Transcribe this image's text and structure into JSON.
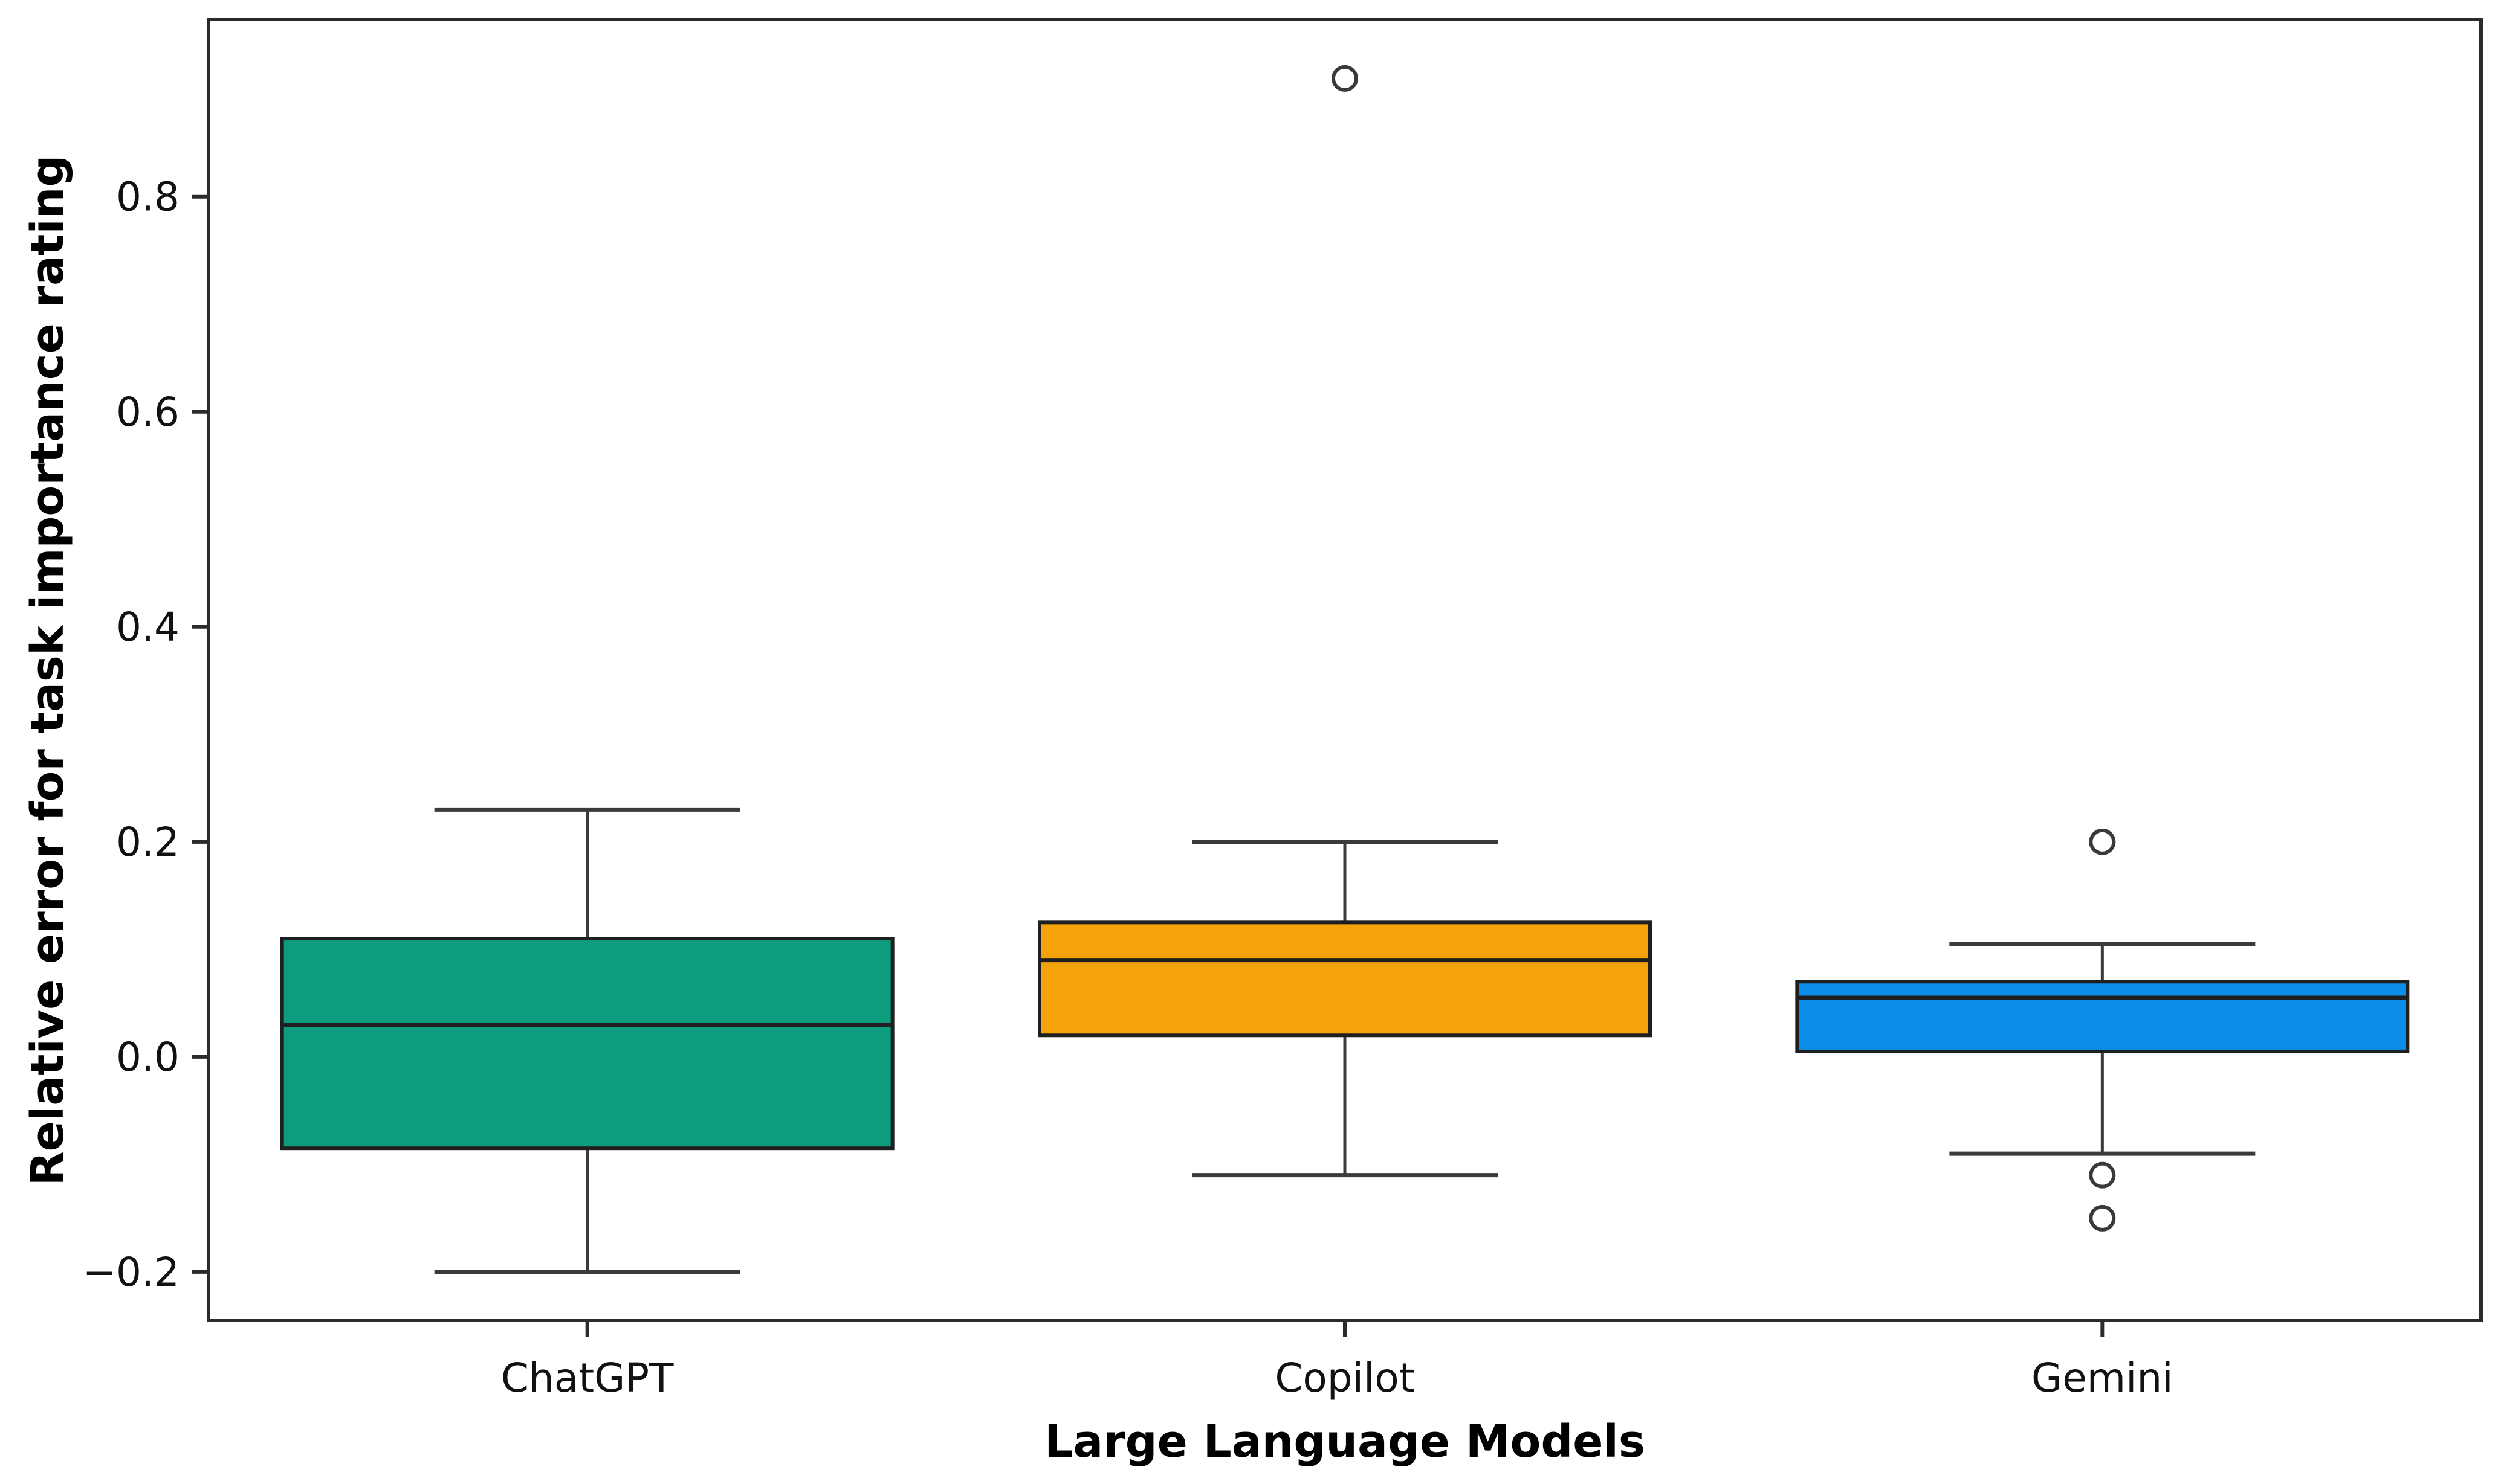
{
  "figure": {
    "background_color": "#ffffff",
    "frame_color": "#2b2b2b",
    "line_color": "#3a3a3a",
    "box_edge_color": "#1f1f1f"
  },
  "chart_data": {
    "type": "boxplot",
    "title": "",
    "xlabel": "Large Language Models",
    "ylabel": "Relative error for task importance rating",
    "categories": [
      "ChatGPT",
      "Copilot",
      "Gemini"
    ],
    "ylim": [
      -0.245,
      0.965
    ],
    "yticks": [
      0.8,
      0.6,
      0.4,
      0.2,
      0.0,
      -0.2
    ],
    "ytick_labels": [
      "0.8",
      "0.6",
      "0.4",
      "0.2",
      "0.0",
      "−0.2"
    ],
    "grid": false,
    "legend": null,
    "series": [
      {
        "name": "ChatGPT",
        "color": "#0e9c7f",
        "whisker_low": -0.2,
        "q1": -0.085,
        "median": 0.03,
        "q3": 0.11,
        "whisker_high": 0.23,
        "outliers": []
      },
      {
        "name": "Copilot",
        "color": "#f5a30a",
        "whisker_low": -0.11,
        "q1": 0.02,
        "median": 0.09,
        "q3": 0.125,
        "whisker_high": 0.2,
        "outliers": [
          0.91
        ]
      },
      {
        "name": "Gemini",
        "color": "#0c8ee8",
        "whisker_low": -0.09,
        "q1": 0.005,
        "median": 0.055,
        "q3": 0.07,
        "whisker_high": 0.105,
        "outliers": [
          0.2,
          -0.11,
          -0.15
        ]
      }
    ]
  }
}
